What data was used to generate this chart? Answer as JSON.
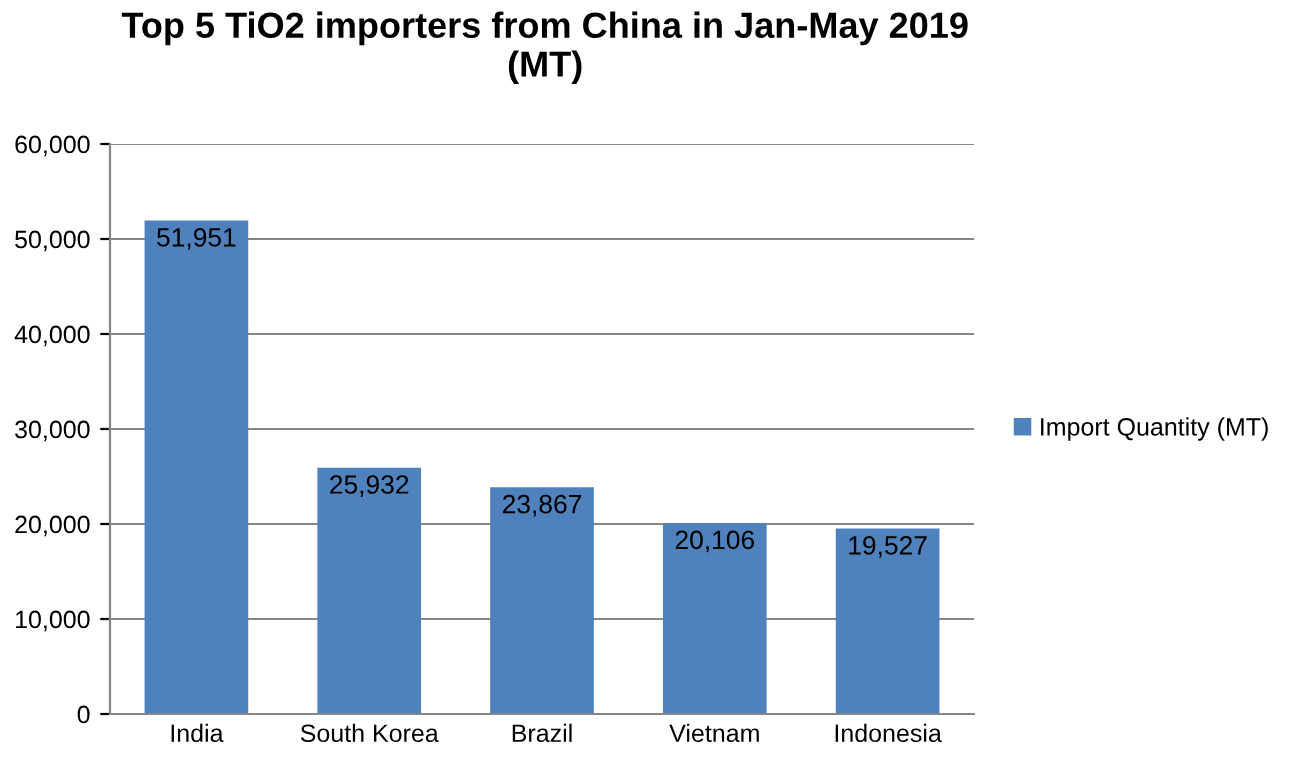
{
  "chart_data": {
    "type": "bar",
    "title": "Top 5 TiO2 importers from China in Jan-May 2019\n(MT)",
    "categories": [
      "India",
      "South Korea",
      "Brazil",
      "Vietnam",
      "Indonesia"
    ],
    "series": [
      {
        "name": "Import Quantity (MT)",
        "color": "#4f81bd",
        "values": [
          51951,
          25932,
          23867,
          20106,
          19527
        ]
      }
    ],
    "value_labels": [
      "51,951",
      "25,932",
      "23,867",
      "20,106",
      "19,527"
    ],
    "ylim": [
      0,
      60000
    ],
    "yticks": [
      0,
      {
        "value": 10000,
        "label": "10,000"
      },
      {
        "value": 20000,
        "label": "20,000"
      },
      {
        "value": 30000,
        "label": "30,000"
      },
      {
        "value": 40000,
        "label": "40,000"
      },
      {
        "value": 50000,
        "label": "50,000"
      },
      {
        "value": 60000,
        "label": "60,000"
      }
    ],
    "grid": "y",
    "legend": "right"
  }
}
